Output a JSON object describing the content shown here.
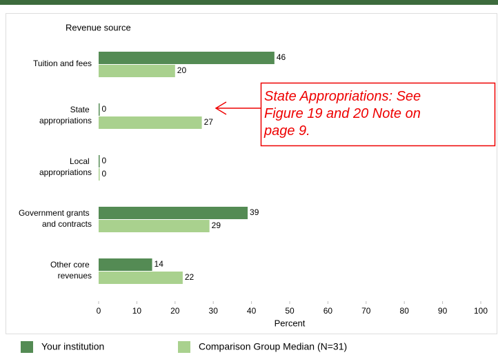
{
  "chart_data": {
    "type": "hbar",
    "y_axis_title": "Revenue source",
    "x_axis_title": "Percent",
    "categories": [
      "Tuition and fees",
      "State\nappropriations",
      "Local\nappropriations",
      "Government grants\nand contracts",
      "Other core\nrevenues"
    ],
    "series": [
      {
        "name": "Your institution",
        "color": "#548b54",
        "values": [
          46,
          0,
          0,
          39,
          14
        ]
      },
      {
        "name": "Comparison Group Median (N=31)",
        "color": "#a9d18e",
        "values": [
          20,
          27,
          0,
          29,
          22
        ]
      }
    ],
    "xlim": [
      0,
      100
    ],
    "xticks": [
      0,
      10,
      20,
      30,
      40,
      50,
      60,
      70,
      80,
      90,
      100
    ],
    "annotation": "State Appropriations: See\nFigure 19 and 20 Note on\npage 9."
  }
}
